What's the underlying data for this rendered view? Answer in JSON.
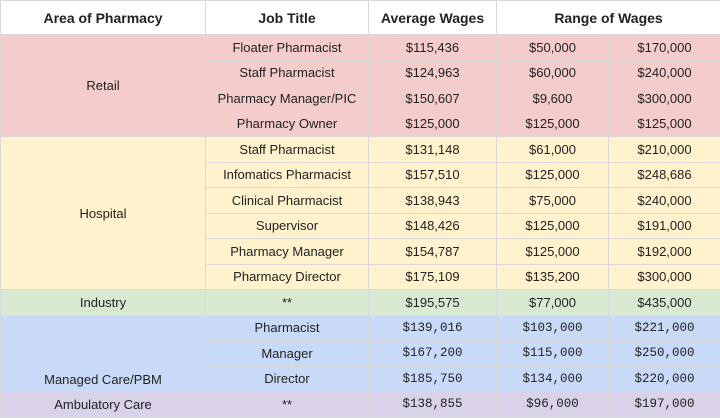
{
  "headers": {
    "area": "Area of Pharmacy",
    "job": "Job Title",
    "avg": "Average Wages",
    "range": "Range of Wages"
  },
  "groups": [
    {
      "area": "Retail",
      "color": "#f4cccc",
      "rows": [
        {
          "job": "Floater Pharmacist",
          "avg": "$115,436",
          "min": "$50,000",
          "max": "$170,000"
        },
        {
          "job": "Staff Pharmacist",
          "avg": "$124,963",
          "min": "$60,000",
          "max": "$240,000"
        },
        {
          "job": "Pharmacy Manager/PIC",
          "avg": "$150,607",
          "min": "$9,600",
          "max": "$300,000"
        },
        {
          "job": "Pharmacy Owner",
          "avg": "$125,000",
          "min": "$125,000",
          "max": "$125,000"
        }
      ]
    },
    {
      "area": "Hospital",
      "color": "#fff2cc",
      "rows": [
        {
          "job": "Staff Pharmacist",
          "avg": "$131,148",
          "min": "$61,000",
          "max": "$210,000"
        },
        {
          "job": "Infomatics Pharmacist",
          "avg": "$157,510",
          "min": "$125,000",
          "max": "$248,686"
        },
        {
          "job": "Clinical Pharmacist",
          "avg": "$138,943",
          "min": "$75,000",
          "max": "$240,000"
        },
        {
          "job": "Supervisor",
          "avg": "$148,426",
          "min": "$125,000",
          "max": "$191,000"
        },
        {
          "job": "Pharmacy Manager",
          "avg": "$154,787",
          "min": "$125,000",
          "max": "$192,000"
        },
        {
          "job": "Pharmacy Director",
          "avg": "$175,109",
          "min": "$135,200",
          "max": "$300,000"
        }
      ]
    },
    {
      "area": "Industry",
      "color": "#d9ead3",
      "rows": [
        {
          "job": "**",
          "avg": "$195,575",
          "min": "$77,000",
          "max": "$435,000"
        }
      ]
    },
    {
      "area": "Managed Care/PBM",
      "color": "#c9daf8",
      "mono": true,
      "rows": [
        {
          "job": "Pharmacist",
          "avg": "$139,016",
          "min": "$103,000",
          "max": "$221,000"
        },
        {
          "job": "Manager",
          "avg": "$167,200",
          "min": "$115,000",
          "max": "$250,000"
        },
        {
          "job": "Director",
          "avg": "$185,750",
          "min": "$134,000",
          "max": "$220,000"
        }
      ]
    },
    {
      "area": "Ambulatory Care",
      "color": "#d9d2e9",
      "mono": true,
      "rows": [
        {
          "job": "**",
          "avg": "$138,855",
          "min": "$96,000",
          "max": "$197,000"
        }
      ]
    }
  ]
}
